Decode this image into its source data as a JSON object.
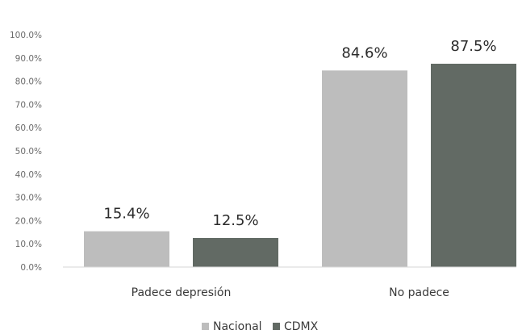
{
  "chart_data": {
    "type": "bar",
    "categories": [
      "Padece depresión",
      "No padece"
    ],
    "series": [
      {
        "name": "Nacional",
        "values": [
          15.4,
          84.6
        ],
        "labels": [
          "15.4%",
          "84.6%"
        ],
        "color": "#bdbdbd"
      },
      {
        "name": "CDMX",
        "values": [
          12.5,
          87.5
        ],
        "labels": [
          "12.5%",
          "87.5%"
        ],
        "color": "#626a64"
      }
    ],
    "yticks": [
      "0.0%",
      "10.0%",
      "20.0%",
      "30.0%",
      "40.0%",
      "50.0%",
      "60.0%",
      "70.0%",
      "80.0%",
      "90.0%",
      "100.0%"
    ],
    "ylim": [
      0,
      100
    ],
    "grid": false,
    "legend": "bottom",
    "title": "",
    "xlabel": "",
    "ylabel": ""
  }
}
